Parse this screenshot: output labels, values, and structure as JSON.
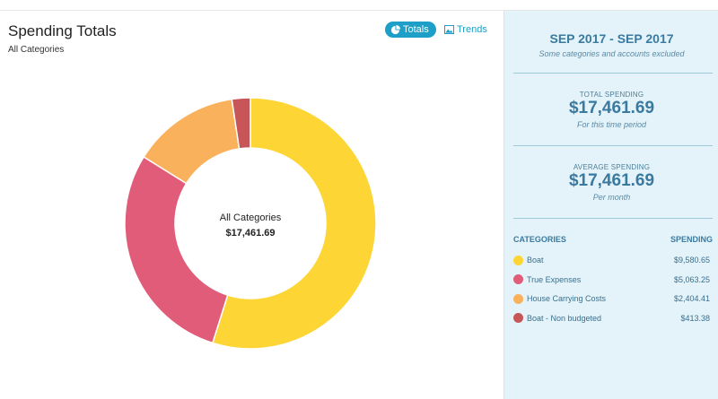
{
  "colors": {
    "accent": "#1e9fc7",
    "panel_bg": "#e3f3f9",
    "panel_text": "#3a7aa0"
  },
  "header": {
    "title": "Spending Totals",
    "subtitle": "All Categories",
    "toggles": [
      {
        "label": "Totals",
        "icon": "pie-chart-icon",
        "active": true
      },
      {
        "label": "Trends",
        "icon": "image-icon",
        "active": false
      }
    ]
  },
  "chart_data": {
    "type": "pie",
    "variant": "donut",
    "center_label": "All Categories",
    "center_value": "$17,461.69",
    "categories": [
      "Boat",
      "True Expenses",
      "House Carrying Costs",
      "Boat - Non budgeted"
    ],
    "values": [
      9580.65,
      5063.25,
      2404.41,
      413.38
    ],
    "colors": [
      "#fdd535",
      "#e05c78",
      "#fab15c",
      "#c85659"
    ]
  },
  "summary": {
    "period": "SEP 2017 - SEP 2017",
    "period_note": "Some categories and accounts excluded",
    "total_label": "TOTAL SPENDING",
    "total_value": "$17,461.69",
    "total_note": "For this time period",
    "average_label": "AVERAGE SPENDING",
    "average_value": "$17,461.69",
    "average_note": "Per month",
    "categories_header": "CATEGORIES",
    "spending_header": "SPENDING",
    "rows": [
      {
        "name": "Boat",
        "amount": "$9,580.65",
        "color": "#fdd535"
      },
      {
        "name": "True Expenses",
        "amount": "$5,063.25",
        "color": "#e05c78"
      },
      {
        "name": "House Carrying Costs",
        "amount": "$2,404.41",
        "color": "#fab15c"
      },
      {
        "name": "Boat - Non budgeted",
        "amount": "$413.38",
        "color": "#c85659"
      }
    ]
  }
}
